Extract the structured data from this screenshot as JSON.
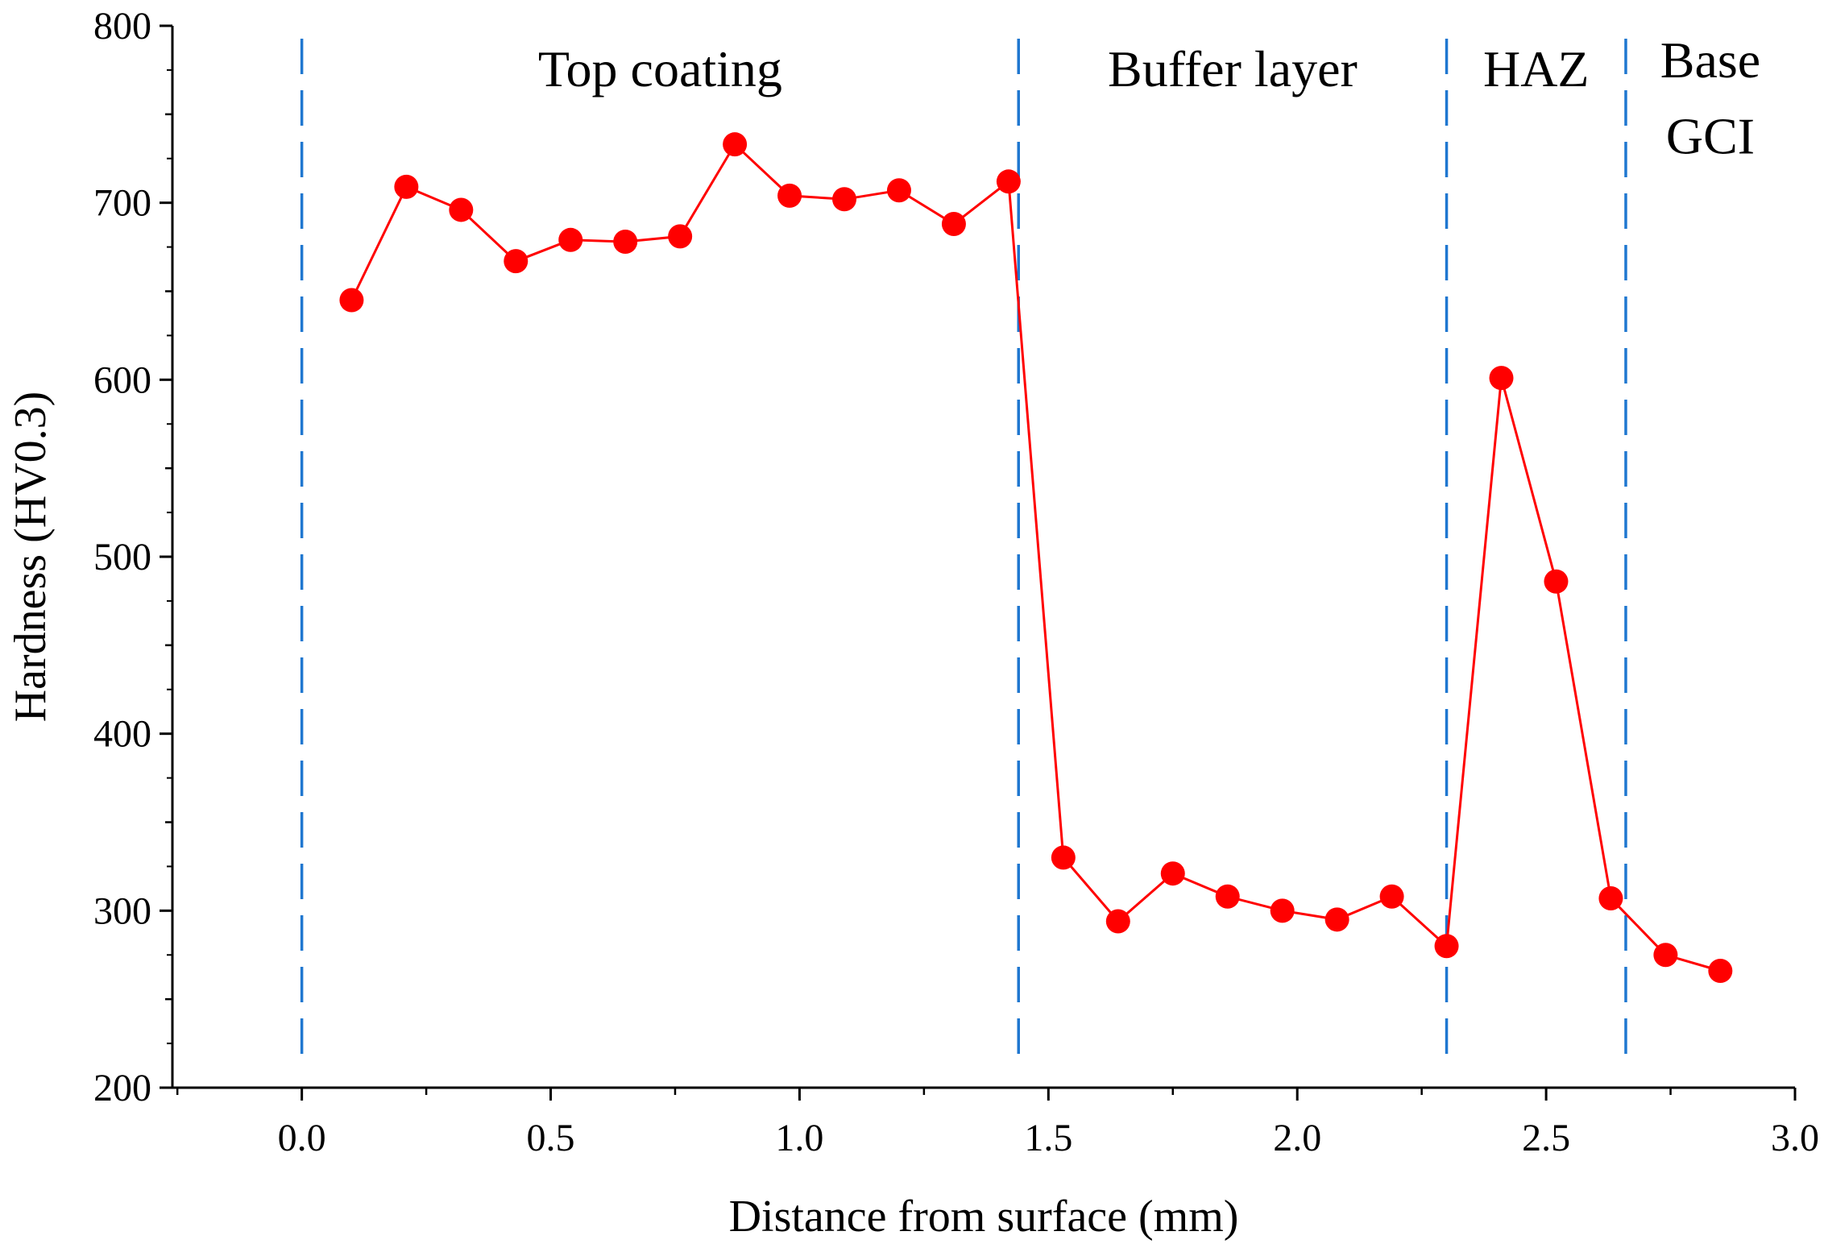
{
  "chart_data": {
    "type": "line",
    "title": "",
    "xlabel": "Distance from surface (mm)",
    "ylabel": "Hardness (HV0.3)",
    "xlim": [
      -0.26,
      3.0
    ],
    "ylim": [
      200,
      800
    ],
    "xticks": [
      0.0,
      0.5,
      1.0,
      1.5,
      2.0,
      2.5,
      3.0
    ],
    "xtick_labels": [
      "0.0",
      "0.5",
      "1.0",
      "1.5",
      "2.0",
      "2.5",
      "3.0"
    ],
    "yticks": [
      200,
      300,
      400,
      500,
      600,
      700,
      800
    ],
    "ytick_labels": [
      "200",
      "300",
      "400",
      "500",
      "600",
      "700",
      "800"
    ],
    "grid": false,
    "series": [
      {
        "name": "Hardness",
        "color": "#ff0000",
        "marker": "circle",
        "x": [
          0.1,
          0.21,
          0.32,
          0.43,
          0.54,
          0.65,
          0.76,
          0.87,
          0.98,
          1.09,
          1.2,
          1.31,
          1.42,
          1.53,
          1.64,
          1.75,
          1.86,
          1.97,
          2.08,
          2.19,
          2.3,
          2.41,
          2.52,
          2.63,
          2.74,
          2.85
        ],
        "values": [
          645,
          709,
          696,
          667,
          679,
          678,
          681,
          733,
          704,
          702,
          707,
          688,
          712,
          330,
          294,
          321,
          308,
          300,
          295,
          308,
          280,
          601,
          486,
          307,
          275,
          266
        ]
      }
    ],
    "boundaries": {
      "x": [
        0.0,
        1.44,
        2.3,
        2.66
      ],
      "color": "#1f77d0",
      "style": "dashed"
    },
    "annotations": [
      {
        "text": "Top coating",
        "x": 0.72,
        "y": 775
      },
      {
        "text": "Buffer layer",
        "x": 1.87,
        "y": 775
      },
      {
        "text": "HAZ",
        "x": 2.48,
        "y": 775
      },
      {
        "text": "Base",
        "x": 2.83,
        "y": 780
      },
      {
        "text": "GCI",
        "x": 2.83,
        "y": 737
      }
    ]
  }
}
